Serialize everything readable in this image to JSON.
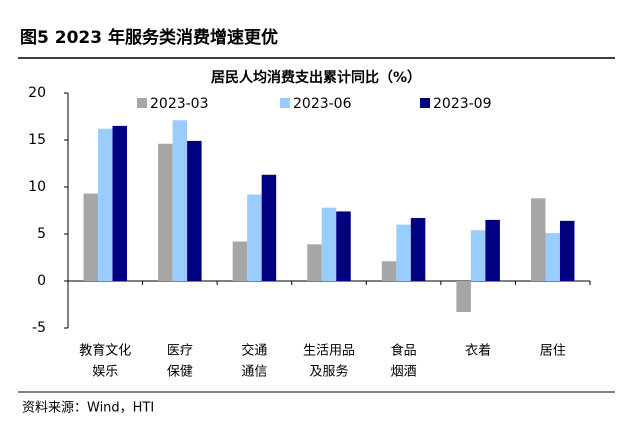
{
  "header": {
    "title": "图5  2023 年服务类消费增速更优"
  },
  "chart_data": {
    "type": "bar",
    "title": "居民人均消费支出累计同比（%）",
    "categories": [
      [
        "教育文化",
        "娱乐"
      ],
      [
        "医疗",
        "保健"
      ],
      [
        "交通",
        "通信"
      ],
      [
        "生活用品",
        "及服务"
      ],
      [
        "食品",
        "烟酒"
      ],
      [
        "衣着"
      ],
      [
        "居住"
      ]
    ],
    "series": [
      {
        "name": "2023-03",
        "color": "#a6a6a6",
        "values": [
          9.3,
          14.6,
          4.2,
          3.9,
          2.1,
          -3.3,
          8.8
        ]
      },
      {
        "name": "2023-06",
        "color": "#99ccff",
        "values": [
          16.2,
          17.1,
          9.2,
          7.8,
          6.0,
          5.4,
          5.1
        ]
      },
      {
        "name": "2023-09",
        "color": "#000080",
        "values": [
          16.5,
          14.9,
          11.3,
          7.4,
          6.7,
          6.5,
          6.4
        ]
      }
    ],
    "ylim": [
      -5,
      20
    ],
    "yticks": [
      -5,
      0,
      5,
      10,
      15,
      20
    ],
    "grid": false,
    "legend": "top"
  },
  "source": "资料来源：Wind，HTI"
}
